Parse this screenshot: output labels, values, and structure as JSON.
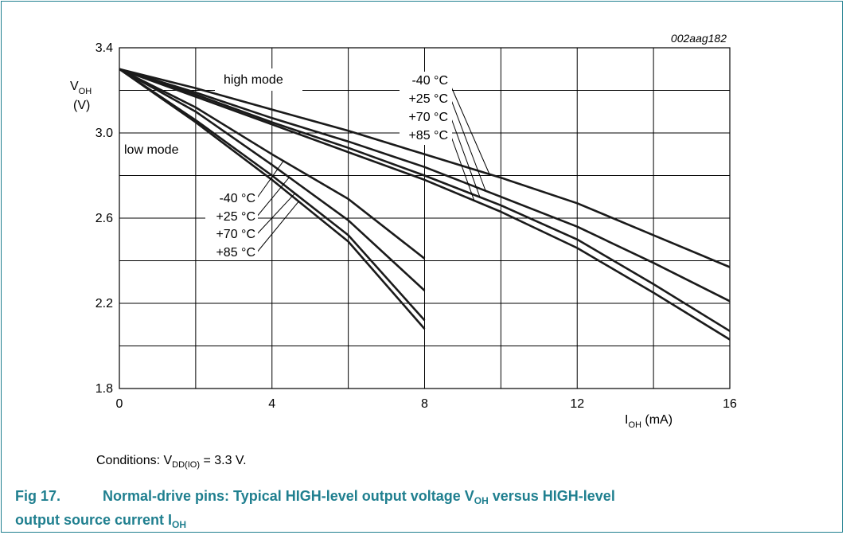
{
  "figure": {
    "number": "Fig 17.",
    "title_line1": "Normal-drive pins: Typical HIGH-level output voltage V",
    "title_sub1": "OH",
    "title_mid": " versus HIGH-level",
    "title_line2": "output source current I",
    "title_sub2": "OH"
  },
  "conditions": {
    "prefix": "Conditions: V",
    "sub": "DD(IO)",
    "suffix": " = 3.3 V."
  },
  "chart_data": {
    "type": "line",
    "id_label": "002aag182",
    "ylabel_main": "V",
    "ylabel_sub": "OH",
    "ylabel_unit": "(V)",
    "xlabel_main": "I",
    "xlabel_sub": "OH",
    "xlabel_unit": " (mA)",
    "xlim": [
      0,
      16
    ],
    "ylim": [
      1.8,
      3.4
    ],
    "x_ticks": [
      "0",
      "4",
      "8",
      "12",
      "16"
    ],
    "y_ticks": [
      "1.8",
      "2.2",
      "2.6",
      "3.0",
      "3.4"
    ],
    "grid": true,
    "annotations": {
      "high_mode": "high mode",
      "low_mode": "low mode",
      "high_temps": [
        "-40 °C",
        "+25 °C",
        "+70 °C",
        "+85 °C"
      ],
      "low_temps": [
        "-40 °C",
        "+25 °C",
        "+70 °C",
        "+85 °C"
      ]
    },
    "series": [
      {
        "group": "high mode",
        "temp": "-40 °C",
        "x": [
          0,
          2,
          4,
          6,
          8,
          10,
          12,
          14,
          16
        ],
        "y": [
          3.3,
          3.21,
          3.11,
          3.01,
          2.9,
          2.79,
          2.67,
          2.52,
          2.37
        ]
      },
      {
        "group": "high mode",
        "temp": "+25 °C",
        "x": [
          0,
          2,
          4,
          6,
          8,
          10,
          12,
          14,
          16
        ],
        "y": [
          3.3,
          3.19,
          3.07,
          2.96,
          2.84,
          2.7,
          2.56,
          2.39,
          2.21
        ]
      },
      {
        "group": "high mode",
        "temp": "+70 °C",
        "x": [
          0,
          2,
          4,
          6,
          8,
          10,
          12,
          14,
          16
        ],
        "y": [
          3.3,
          3.18,
          3.05,
          2.93,
          2.8,
          2.66,
          2.5,
          2.29,
          2.07
        ]
      },
      {
        "group": "high mode",
        "temp": "+85 °C",
        "x": [
          0,
          2,
          4,
          6,
          8,
          10,
          12,
          14,
          16
        ],
        "y": [
          3.3,
          3.17,
          3.04,
          2.91,
          2.78,
          2.63,
          2.46,
          2.25,
          2.03
        ]
      },
      {
        "group": "low mode",
        "temp": "-40 °C",
        "x": [
          0,
          2,
          4,
          6,
          8
        ],
        "y": [
          3.3,
          3.12,
          2.9,
          2.69,
          2.41
        ]
      },
      {
        "group": "low mode",
        "temp": "+25 °C",
        "x": [
          0,
          2,
          4,
          6,
          8
        ],
        "y": [
          3.3,
          3.1,
          2.85,
          2.59,
          2.26
        ]
      },
      {
        "group": "low mode",
        "temp": "+70 °C",
        "x": [
          0,
          2,
          4,
          6,
          8
        ],
        "y": [
          3.3,
          3.06,
          2.8,
          2.52,
          2.12
        ]
      },
      {
        "group": "low mode",
        "temp": "+85 °C",
        "x": [
          0,
          2,
          4,
          6,
          8
        ],
        "y": [
          3.3,
          3.05,
          2.78,
          2.49,
          2.08
        ]
      }
    ]
  }
}
